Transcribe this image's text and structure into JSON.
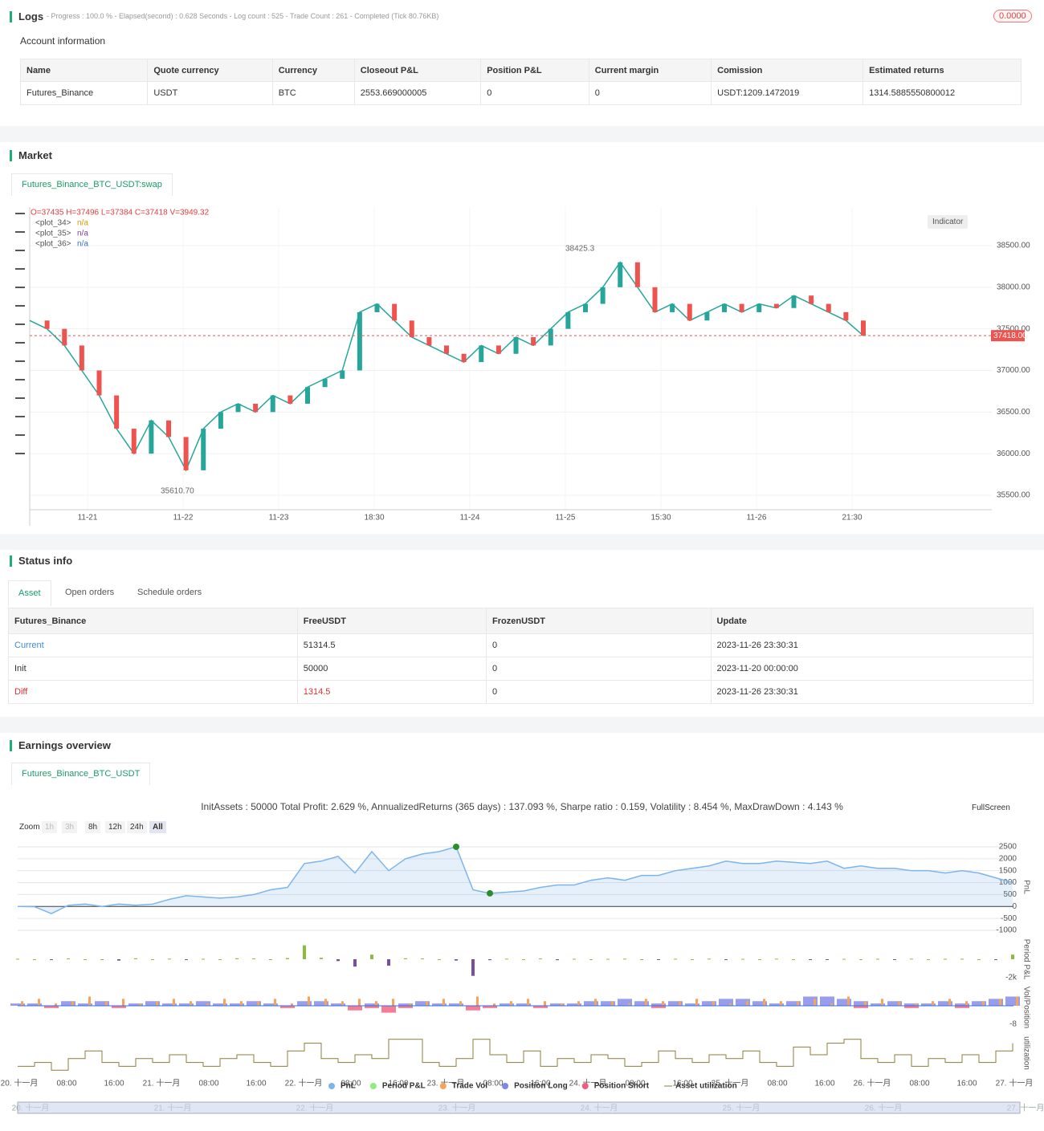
{
  "logs": {
    "title": "Logs",
    "summary": "- Progress : 100.0 % - Elapsed(second) : 0.628  Seconds - Log count : 525 - Trade Count : 261 - Completed (Tick 80.76KB)",
    "badge": "0.0000"
  },
  "account": {
    "title": "Account information",
    "headers": [
      "Name",
      "Quote currency",
      "Currency",
      "Closeout P&L",
      "Position P&L",
      "Current margin",
      "Comission",
      "Estimated returns"
    ],
    "rows": [
      [
        "Futures_Binance",
        "USDT",
        "BTC",
        "2553.669000005",
        "0",
        "0",
        "USDT:1209.1472019",
        "1314.5885550800012"
      ]
    ]
  },
  "market": {
    "title": "Market",
    "tab": "Futures_Binance_BTC_USDT:swap",
    "ohlc": "O=37435 H=37496 L=37384 C=37418 V=3949.32",
    "plots": [
      {
        "name": "<plot_34>",
        "value": "n/a",
        "color": "#e69500"
      },
      {
        "name": "<plot_35>",
        "value": "n/a",
        "color": "#7b3fa0"
      },
      {
        "name": "<plot_36>",
        "value": "n/a",
        "color": "#3a6fd8"
      }
    ],
    "indicator": "Indicator",
    "high_label": "38425.3",
    "low_label": "35610.70",
    "last_price": {
      "value": 37418,
      "label": "37418.00"
    },
    "ylim": [
      35350,
      38900
    ],
    "yticks": [
      {
        "value": 35500,
        "label": "35500.00"
      },
      {
        "value": 36000,
        "label": "36000.00"
      },
      {
        "value": 36500,
        "label": "36500.00"
      },
      {
        "value": 37000,
        "label": "37000.00"
      },
      {
        "value": 37500,
        "label": "37500.00"
      },
      {
        "value": 38000,
        "label": "38000.00"
      },
      {
        "value": 38500,
        "label": "38500.00"
      }
    ],
    "xticks": [
      "11-21",
      "11-22",
      "11-23",
      "18:30",
      "11-24",
      "11-25",
      "15:30",
      "11-26",
      "21:30"
    ],
    "close": [
      37600,
      37500,
      37300,
      37000,
      36700,
      36300,
      36000,
      36400,
      36200,
      35800,
      36300,
      36500,
      36600,
      36500,
      36700,
      36600,
      36800,
      36900,
      37000,
      37700,
      37800,
      37600,
      37400,
      37300,
      37200,
      37100,
      37300,
      37200,
      37400,
      37300,
      37500,
      37700,
      37800,
      38000,
      38300,
      38000,
      37700,
      37800,
      37600,
      37700,
      37800,
      37700,
      37800,
      37750,
      37900,
      37800,
      37700,
      37600,
      37418
    ]
  },
  "status": {
    "title": "Status info",
    "tabs": [
      "Asset",
      "Open orders",
      "Schedule orders"
    ],
    "headers": [
      "Futures_Binance",
      "FreeUSDT",
      "FrozenUSDT",
      "Update"
    ],
    "rows": [
      [
        "Current",
        "51314.5",
        "0",
        "2023-11-26 23:30:31"
      ],
      [
        "Init",
        "50000",
        "0",
        "2023-11-20 00:00:00"
      ],
      [
        "Diff",
        "1314.5",
        "0",
        "2023-11-26 23:30:31"
      ]
    ]
  },
  "earnings": {
    "title": "Earnings overview",
    "tab": "Futures_Binance_BTC_USDT",
    "summary": "InitAssets : 50000 Total Profit: 2.629 %, AnnualizedReturns (365 days) : 137.093 %, Sharpe ratio : 0.159, Volatility : 8.454 %, MaxDrawDown : 4.143 %",
    "zoom": [
      "Zoom",
      "1h",
      "3h",
      "8h",
      "12h",
      "24h",
      "All"
    ],
    "fullscreen": "FullScreen",
    "axis_titles": [
      "PnL",
      "Period P&L",
      "Vol/Position",
      "utilization"
    ],
    "pnl_ylim": [
      -1100,
      2700
    ],
    "pnl_yticks": [
      2500,
      2000,
      1500,
      1000,
      500,
      0,
      -500,
      -1000
    ],
    "period_ylim": [
      -2000,
      2000
    ],
    "period_yticks": [
      {
        "value": -2000,
        "label": "-2k"
      }
    ],
    "vol_ylim": [
      -8,
      8
    ],
    "vol_yticks": [
      -8
    ],
    "util_ylim": [
      0,
      1
    ],
    "xticks": [
      "20. 十一月",
      "08:00",
      "16:00",
      "21. 十一月",
      "08:00",
      "16:00",
      "22. 十一月",
      "08:00",
      "16:00",
      "23. 十一月",
      "08:00",
      "16:00",
      "24. 十一月",
      "08:00",
      "16:00",
      "25. 十一月",
      "08:00",
      "16:00",
      "26. 十一月",
      "08:00",
      "16:00",
      "27. 十一月"
    ],
    "series": [
      {
        "name": "PnL",
        "color": "#7cb5ec",
        "values": [
          0,
          -10,
          -300,
          50,
          100,
          0,
          100,
          50,
          100,
          300,
          450,
          400,
          350,
          400,
          500,
          700,
          800,
          1800,
          1900,
          2100,
          1400,
          2300,
          1500,
          2000,
          2200,
          2300,
          2500,
          700,
          550,
          600,
          650,
          800,
          900,
          900,
          1100,
          1200,
          1100,
          1300,
          1300,
          1500,
          1600,
          1700,
          1900,
          1800,
          1800,
          1900,
          1850,
          1800,
          1900,
          1600,
          1700,
          1600,
          1600,
          1500,
          1500,
          1400,
          1500,
          1400,
          1200,
          1000
        ]
      },
      {
        "name": "Period P&L",
        "color": "#90ed7d",
        "values": [
          50,
          0,
          -50,
          80,
          0,
          0,
          -150,
          100,
          0,
          60,
          -80,
          50,
          0,
          100,
          80,
          0,
          120,
          1500,
          150,
          -200,
          -800,
          500,
          -700,
          100,
          80,
          0,
          -150,
          -1800,
          -100,
          60,
          0,
          80,
          -100,
          50,
          0,
          40,
          60,
          0,
          -60,
          50,
          0,
          60,
          -80,
          40,
          0,
          60,
          0,
          -70,
          -60,
          40,
          0,
          50,
          -80,
          60,
          0,
          40,
          50,
          0,
          -60,
          500
        ]
      },
      {
        "name": "Trade Vol",
        "color": "#f7a35c",
        "values": [
          2,
          3,
          1,
          2,
          4,
          2,
          3,
          1,
          2,
          3,
          2,
          1,
          3,
          2,
          2,
          3,
          1,
          4,
          3,
          2,
          3,
          2,
          3,
          1,
          2,
          3,
          2,
          4,
          1,
          2,
          3,
          2,
          1,
          2,
          3,
          2,
          1,
          3,
          2,
          2,
          3,
          2,
          1,
          2,
          3,
          2,
          2,
          3,
          1,
          4,
          2,
          3,
          2,
          1,
          2,
          3,
          2,
          2,
          3,
          4
        ]
      },
      {
        "name": "Position Long",
        "color": "#8085e9",
        "values": [
          1,
          1,
          0,
          2,
          1,
          2,
          0,
          1,
          2,
          1,
          1,
          2,
          1,
          1,
          2,
          1,
          0,
          2,
          2,
          1,
          0,
          1,
          0,
          1,
          2,
          1,
          1,
          0,
          0,
          1,
          1,
          0,
          1,
          1,
          2,
          2,
          3,
          2,
          1,
          2,
          1,
          2,
          3,
          3,
          2,
          1,
          2,
          4,
          4,
          3,
          2,
          1,
          2,
          1,
          1,
          2,
          1,
          2,
          3,
          4
        ]
      },
      {
        "name": "Position Short",
        "color": "#f15c80",
        "values": [
          0,
          0,
          -1,
          0,
          0,
          0,
          -1,
          0,
          0,
          0,
          0,
          0,
          0,
          0,
          0,
          0,
          -1,
          0,
          0,
          0,
          -2,
          -1,
          -3,
          -1,
          0,
          0,
          0,
          -2,
          -1,
          0,
          0,
          -1,
          0,
          0,
          0,
          0,
          0,
          0,
          -1,
          0,
          0,
          0,
          0,
          0,
          0,
          0,
          0,
          0,
          0,
          0,
          -1,
          0,
          0,
          -1,
          0,
          0,
          -1,
          0,
          0,
          0
        ]
      },
      {
        "name": "Asset utilization",
        "color": "#8d7d3a",
        "values": [
          0.2,
          0.3,
          0.1,
          0.4,
          0.6,
          0.3,
          0.2,
          0.4,
          0.3,
          0.5,
          0.3,
          0.2,
          0.4,
          0.5,
          0.3,
          0.2,
          0.6,
          0.8,
          0.4,
          0.3,
          0.5,
          0.4,
          0.9,
          0.9,
          0.3,
          0.2,
          0.4,
          0.9,
          0.5,
          0.3,
          0.6,
          0.2,
          0.4,
          0.3,
          0.5,
          0.4,
          0.2,
          0.3,
          0.6,
          0.4,
          0.3,
          0.5,
          0.4,
          0.6,
          0.3,
          0.2,
          0.7,
          0.5,
          0.8,
          0.9,
          0.4,
          0.3,
          0.5,
          0.2,
          0.4,
          0.3,
          0.5,
          0.3,
          0.6,
          0.8
        ]
      }
    ]
  }
}
